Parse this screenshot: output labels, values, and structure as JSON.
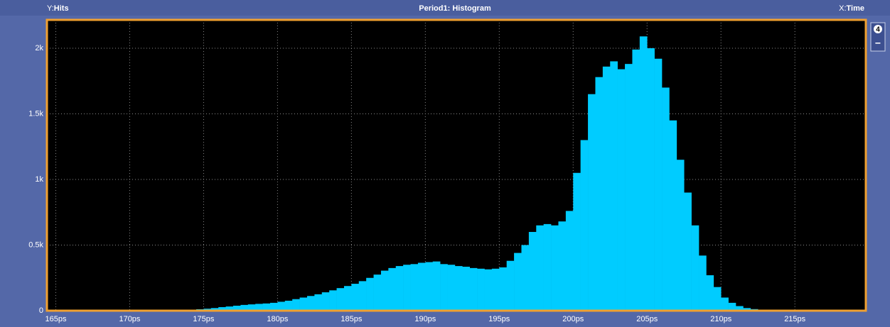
{
  "chart_data": {
    "type": "histogram",
    "title": "Period1: Histogram",
    "y_label_prefix": "Y:",
    "y_label": "Hits",
    "x_label_prefix": "X:",
    "x_label": "Time",
    "side_button": "4",
    "side_button_2": "−",
    "color": "#00ccff",
    "grid": true,
    "bins": [
      172,
      172.5,
      173,
      173.5,
      174,
      174.5,
      175,
      175.5,
      176,
      176.5,
      177,
      177.5,
      178,
      178.5,
      179,
      179.5,
      180,
      180.5,
      181,
      181.5,
      182,
      182.5,
      183,
      183.5,
      184,
      184.5,
      185,
      185.5,
      186,
      186.5,
      187,
      187.5,
      188,
      188.5,
      189,
      189.5,
      190,
      190.5,
      191,
      191.5,
      192,
      192.5,
      193,
      193.5,
      194,
      194.5,
      195,
      195.5,
      196,
      196.5,
      197,
      197.5,
      198,
      198.5,
      199,
      199.5,
      200,
      200.5,
      201,
      201.5,
      202,
      202.5,
      203,
      203.5,
      204,
      204.5,
      205,
      205.5,
      206,
      206.5,
      207,
      207.5,
      208,
      208.5,
      209,
      209.5,
      210,
      210.5,
      211,
      211.5,
      212,
      212.5,
      213,
      213.5,
      214
    ],
    "counts": [
      2,
      3,
      4,
      6,
      8,
      11,
      15,
      20,
      27,
      32,
      38,
      44,
      48,
      52,
      55,
      60,
      68,
      76,
      88,
      100,
      112,
      125,
      140,
      155,
      172,
      188,
      205,
      225,
      250,
      275,
      305,
      325,
      340,
      350,
      355,
      365,
      370,
      375,
      355,
      350,
      340,
      335,
      325,
      320,
      315,
      320,
      330,
      380,
      440,
      500,
      600,
      650,
      660,
      650,
      680,
      760,
      1050,
      1300,
      1650,
      1780,
      1860,
      1900,
      1840,
      1880,
      1990,
      2090,
      2000,
      1920,
      1700,
      1450,
      1150,
      900,
      650,
      420,
      270,
      180,
      100,
      60,
      35,
      20,
      12,
      8,
      5,
      2
    ],
    "xlim": [
      164.4,
      219.8
    ],
    "ylim": [
      0,
      2216
    ],
    "xticks": [
      {
        "value": 165,
        "label": "165ps"
      },
      {
        "value": 170,
        "label": "170ps"
      },
      {
        "value": 175,
        "label": "175ps"
      },
      {
        "value": 180,
        "label": "180ps"
      },
      {
        "value": 185,
        "label": "185ps"
      },
      {
        "value": 190,
        "label": "190ps"
      },
      {
        "value": 195,
        "label": "195ps"
      },
      {
        "value": 200,
        "label": "200ps"
      },
      {
        "value": 205,
        "label": "205ps"
      },
      {
        "value": 210,
        "label": "210ps"
      },
      {
        "value": 215,
        "label": "215ps"
      }
    ],
    "yticks": [
      0,
      {
        "value": 500,
        "label": "0.5k"
      },
      {
        "value": 1000,
        "label": "1k"
      },
      {
        "value": 1500,
        "label": "1.5k"
      },
      {
        "value": 2000,
        "label": "2k"
      }
    ]
  }
}
